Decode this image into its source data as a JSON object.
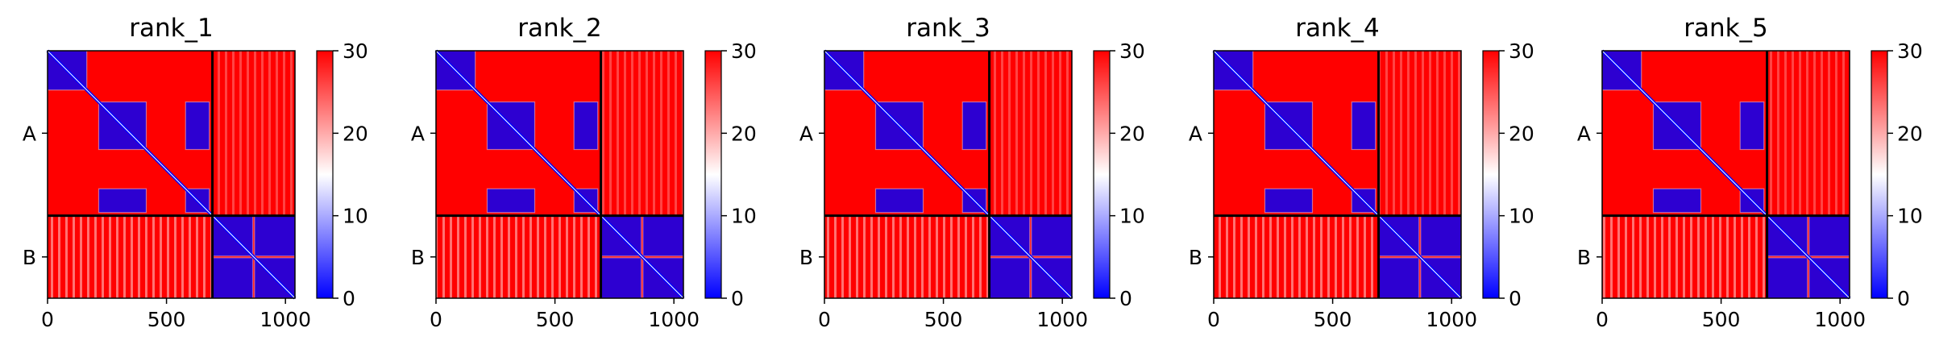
{
  "chart_data": {
    "type": "heatmap",
    "colormap": {
      "low": "#0000ff",
      "mid": "#ffffff",
      "high": "#ff0000"
    },
    "colorbar": {
      "range": [
        0,
        30
      ],
      "ticks": [
        "0",
        "10",
        "20",
        "30"
      ]
    },
    "x_range": [
      0,
      1040
    ],
    "x_ticks": [
      {
        "value": 0,
        "label": "0"
      },
      {
        "value": 500,
        "label": "500"
      },
      {
        "value": 1000,
        "label": "1000"
      }
    ],
    "chain_boundary": 693,
    "chains": [
      {
        "label": "A",
        "start": 0,
        "end": 693
      },
      {
        "label": "B",
        "start": 693,
        "end": 1040
      }
    ],
    "domains": [
      [
        0,
        165
      ],
      [
        215,
        415
      ],
      [
        580,
        680
      ],
      [
        693,
        863
      ],
      [
        870,
        1040
      ]
    ],
    "panels": [
      {
        "title": "rank_1"
      },
      {
        "title": "rank_2"
      },
      {
        "title": "rank_3"
      },
      {
        "title": "rank_4"
      },
      {
        "title": "rank_5"
      }
    ]
  }
}
